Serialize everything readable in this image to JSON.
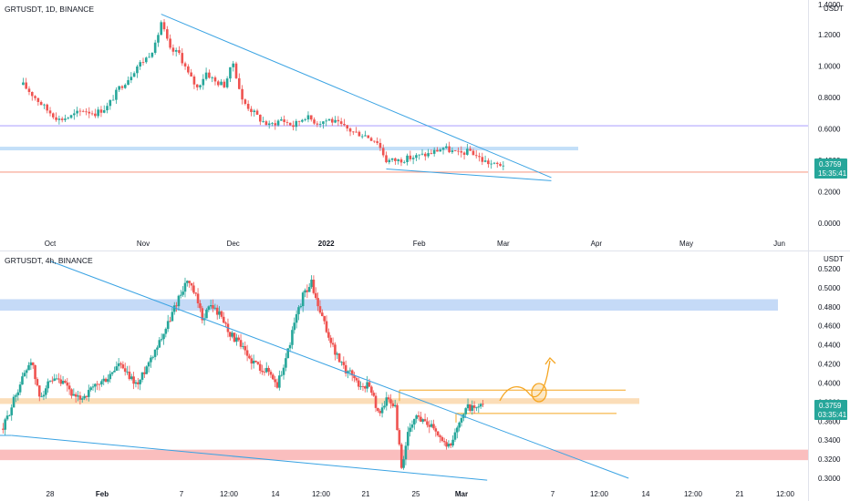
{
  "chart_data": [
    {
      "type": "candlestick",
      "title": "GRTUSDT, 1D, BINANCE",
      "currency": "USDT",
      "price_tag": "0.3759",
      "countdown": "15:35:41",
      "y_ticks": [
        "1.4000",
        "1.2000",
        "1.0000",
        "0.8000",
        "0.6000",
        "0.4000",
        "0.2000",
        "0.0000"
      ],
      "ylim": [
        -0.04,
        1.45
      ],
      "x_ticks": [
        "Oct",
        "Nov",
        "Dec",
        "2022",
        "Feb",
        "Mar",
        "Apr",
        "May",
        "Jun"
      ],
      "horizontal_levels": [
        {
          "value": 0.62,
          "color": "#b3a8ff",
          "style": "line"
        },
        {
          "value": 0.475,
          "color": "#bcdcf7",
          "style": "band"
        },
        {
          "value": 0.325,
          "color": "#f7a08c",
          "style": "line"
        }
      ],
      "trendlines": [
        {
          "from": [
            "2021-11-07",
            1.33
          ],
          "to": [
            "2022-03-17",
            0.29
          ],
          "color": "#3aa3e3"
        },
        {
          "from": [
            "2022-01-21",
            0.345
          ],
          "to": [
            "2022-03-17",
            0.27
          ],
          "color": "#3aa3e3"
        }
      ],
      "close_path": [
        [
          "2021-09-22",
          0.88
        ],
        [
          "2021-09-26",
          0.8
        ],
        [
          "2021-09-30",
          0.72
        ],
        [
          "2021-10-04",
          0.66
        ],
        [
          "2021-10-08",
          0.68
        ],
        [
          "2021-10-12",
          0.72
        ],
        [
          "2021-10-16",
          0.7
        ],
        [
          "2021-10-20",
          0.74
        ],
        [
          "2021-10-24",
          0.86
        ],
        [
          "2021-10-27",
          0.92
        ],
        [
          "2021-10-30",
          1.0
        ],
        [
          "2021-11-02",
          1.05
        ],
        [
          "2021-11-05",
          1.13
        ],
        [
          "2021-11-07",
          1.28
        ],
        [
          "2021-11-10",
          1.1
        ],
        [
          "2021-11-13",
          1.08
        ],
        [
          "2021-11-16",
          0.95
        ],
        [
          "2021-11-19",
          0.86
        ],
        [
          "2021-11-22",
          0.96
        ],
        [
          "2021-11-25",
          0.9
        ],
        [
          "2021-11-28",
          0.88
        ],
        [
          "2021-12-01",
          1.02
        ],
        [
          "2021-12-04",
          0.78
        ],
        [
          "2021-12-07",
          0.72
        ],
        [
          "2021-12-10",
          0.66
        ],
        [
          "2021-12-13",
          0.62
        ],
        [
          "2021-12-17",
          0.66
        ],
        [
          "2021-12-21",
          0.62
        ],
        [
          "2021-12-25",
          0.68
        ],
        [
          "2021-12-29",
          0.64
        ],
        [
          "2022-01-02",
          0.66
        ],
        [
          "2022-01-06",
          0.62
        ],
        [
          "2022-01-10",
          0.58
        ],
        [
          "2022-01-14",
          0.56
        ],
        [
          "2022-01-18",
          0.52
        ],
        [
          "2022-01-21",
          0.4
        ],
        [
          "2022-01-25",
          0.4
        ],
        [
          "2022-01-30",
          0.42
        ],
        [
          "2022-02-04",
          0.44
        ],
        [
          "2022-02-09",
          0.48
        ],
        [
          "2022-02-14",
          0.44
        ],
        [
          "2022-02-18",
          0.46
        ],
        [
          "2022-02-22",
          0.4
        ],
        [
          "2022-02-26",
          0.37
        ],
        [
          "2022-03-01",
          0.3759
        ]
      ]
    },
    {
      "type": "candlestick",
      "title": "GRTUSDT, 4h, BINANCE",
      "currency": "USDT",
      "price_tag": "0.3759",
      "countdown": "03:35:41",
      "y_ticks": [
        "0.5200",
        "0.5000",
        "0.4800",
        "0.4600",
        "0.4400",
        "0.4200",
        "0.4000",
        "0.3800",
        "0.3600",
        "0.3400",
        "0.3200",
        "0.3000"
      ],
      "ylim": [
        0.295,
        0.532
      ],
      "x_ticks": [
        "28",
        "Feb",
        "7",
        "12:00",
        "14",
        "12:00",
        "21",
        "25",
        "Mar",
        "7",
        "12:00",
        "14",
        "12:00",
        "21",
        "12:00"
      ],
      "zones": [
        {
          "from": 0.476,
          "to": 0.488,
          "color": "#bfd6f6"
        },
        {
          "from": 0.378,
          "to": 0.384,
          "color": "#fbd9b0"
        },
        {
          "from": 0.319,
          "to": 0.33,
          "color": "#f9b7b7"
        }
      ],
      "orange_lines": [
        0.3925,
        0.368
      ],
      "trendlines": [
        {
          "from": [
            "2022-01-28",
            0.528
          ],
          "to": [
            "2022-03-14",
            0.3
          ],
          "color": "#3aa3e3"
        },
        {
          "from": [
            "2022-01-25",
            0.345
          ],
          "to": [
            "2022-03-03",
            0.298
          ],
          "color": "#3aa3e3"
        }
      ],
      "projection": "arrow-up",
      "close_path": [
        [
          "2022-01-24 08:00",
          0.352
        ],
        [
          "2022-01-25 08:00",
          0.388
        ],
        [
          "2022-01-25 20:00",
          0.405
        ],
        [
          "2022-01-26 12:00",
          0.425
        ],
        [
          "2022-01-27 04:00",
          0.385
        ],
        [
          "2022-01-27 20:00",
          0.398
        ],
        [
          "2022-01-28 12:00",
          0.402
        ],
        [
          "2022-01-29 08:00",
          0.396
        ],
        [
          "2022-01-30 00:00",
          0.382
        ],
        [
          "2022-01-30 20:00",
          0.388
        ],
        [
          "2022-01-31 16:00",
          0.398
        ],
        [
          "2022-02-01 12:00",
          0.405
        ],
        [
          "2022-02-02 08:00",
          0.42
        ],
        [
          "2022-02-03 00:00",
          0.408
        ],
        [
          "2022-02-03 20:00",
          0.398
        ],
        [
          "2022-02-04 12:00",
          0.418
        ],
        [
          "2022-02-05 08:00",
          0.44
        ],
        [
          "2022-02-06 04:00",
          0.462
        ],
        [
          "2022-02-07 00:00",
          0.49
        ],
        [
          "2022-02-07 16:00",
          0.508
        ],
        [
          "2022-02-08 08:00",
          0.49
        ],
        [
          "2022-02-08 20:00",
          0.468
        ],
        [
          "2022-02-09 12:00",
          0.482
        ],
        [
          "2022-02-10 08:00",
          0.47
        ],
        [
          "2022-02-11 00:00",
          0.452
        ],
        [
          "2022-02-11 16:00",
          0.442
        ],
        [
          "2022-02-12 08:00",
          0.428
        ],
        [
          "2022-02-13 04:00",
          0.418
        ],
        [
          "2022-02-14 00:00",
          0.412
        ],
        [
          "2022-02-14 16:00",
          0.398
        ],
        [
          "2022-02-15 08:00",
          0.425
        ],
        [
          "2022-02-16 00:00",
          0.462
        ],
        [
          "2022-02-16 16:00",
          0.492
        ],
        [
          "2022-02-17 08:00",
          0.505
        ],
        [
          "2022-02-17 20:00",
          0.48
        ],
        [
          "2022-02-18 12:00",
          0.455
        ],
        [
          "2022-02-19 04:00",
          0.432
        ],
        [
          "2022-02-19 20:00",
          0.415
        ],
        [
          "2022-02-20 12:00",
          0.41
        ],
        [
          "2022-02-21 04:00",
          0.395
        ],
        [
          "2022-02-21 20:00",
          0.4
        ],
        [
          "2022-02-22 12:00",
          0.368
        ],
        [
          "2022-02-23 04:00",
          0.382
        ],
        [
          "2022-02-23 20:00",
          0.375
        ],
        [
          "2022-02-24 08:00",
          0.312
        ],
        [
          "2022-02-24 20:00",
          0.345
        ],
        [
          "2022-02-25 12:00",
          0.365
        ],
        [
          "2022-02-26 04:00",
          0.36
        ],
        [
          "2022-02-26 20:00",
          0.355
        ],
        [
          "2022-02-27 12:00",
          0.34
        ],
        [
          "2022-02-28 04:00",
          0.332
        ],
        [
          "2022-02-28 20:00",
          0.362
        ],
        [
          "2022-03-01 12:00",
          0.375
        ],
        [
          "2022-03-02 04:00",
          0.372
        ],
        [
          "2022-03-02 16:00",
          0.3759
        ]
      ]
    }
  ]
}
